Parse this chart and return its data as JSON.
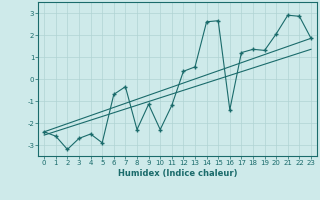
{
  "x": [
    0,
    1,
    2,
    3,
    4,
    5,
    6,
    7,
    8,
    9,
    10,
    11,
    12,
    13,
    14,
    15,
    16,
    17,
    18,
    19,
    20,
    21,
    22,
    23
  ],
  "y_scatter": [
    -2.4,
    -2.6,
    -3.2,
    -2.7,
    -2.5,
    -2.9,
    -0.7,
    -0.35,
    -2.3,
    -1.15,
    -2.3,
    -1.2,
    0.35,
    0.55,
    2.6,
    2.65,
    -1.4,
    1.2,
    1.35,
    1.3,
    2.05,
    2.9,
    2.85,
    1.85
  ],
  "line1_x": [
    0,
    23
  ],
  "line1_y": [
    -2.4,
    1.85
  ],
  "line2_x": [
    0,
    23
  ],
  "line2_y": [
    -2.55,
    1.35
  ],
  "bg_color": "#ceeaea",
  "line_color": "#1a6b6b",
  "grid_color": "#b0d4d4",
  "xlabel": "Humidex (Indice chaleur)",
  "ylim": [
    -3.5,
    3.5
  ],
  "xlim": [
    -0.5,
    23.5
  ],
  "yticks": [
    -3,
    -2,
    -1,
    0,
    1,
    2,
    3
  ],
  "xticks": [
    0,
    1,
    2,
    3,
    4,
    5,
    6,
    7,
    8,
    9,
    10,
    11,
    12,
    13,
    14,
    15,
    16,
    17,
    18,
    19,
    20,
    21,
    22,
    23
  ],
  "xlabel_fontsize": 6.0,
  "tick_fontsize": 5.0
}
